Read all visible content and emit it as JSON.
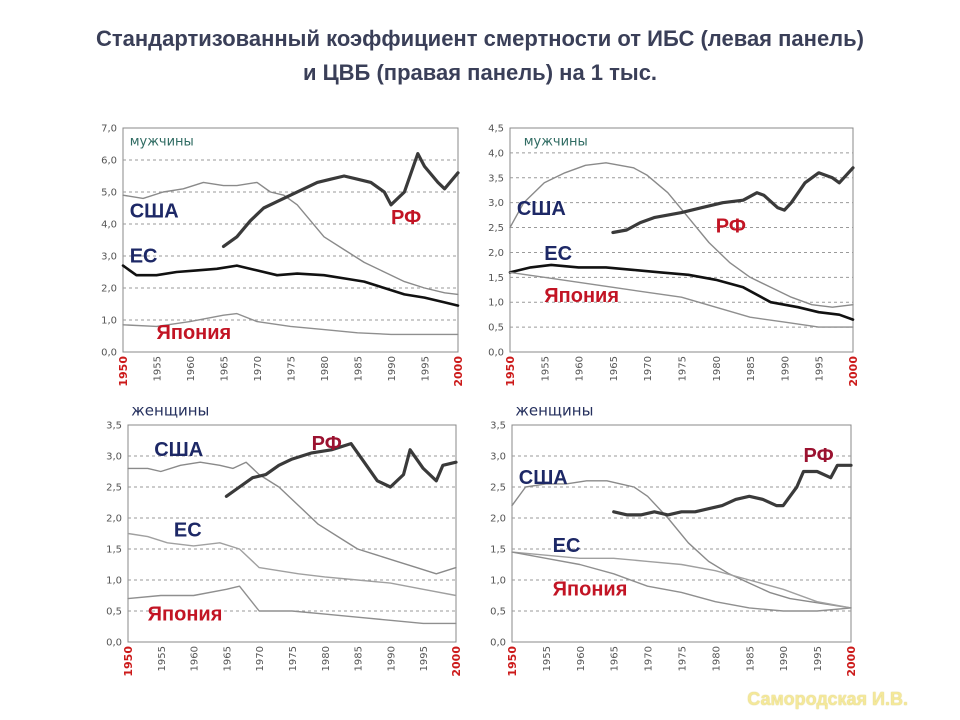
{
  "title_line1": "Стандартизованный коэффициент смертности от ИБС (левая панель)",
  "title_line2": "и ЦВБ (правая панель) на 1 тыс.",
  "footer": "Самородская И.В.",
  "colors": {
    "usa": "#8a8a8a",
    "eu": "#a0a0a0",
    "japan": "#8f8f8f",
    "rf": "#3a3a3a",
    "eu_men": "#111111"
  },
  "chart_data": [
    {
      "type": "line",
      "group": "мужчины",
      "ylim": [
        0,
        7
      ],
      "yticks": [
        "0,0",
        "1,0",
        "2,0",
        "3,0",
        "4,0",
        "5,0",
        "6,0",
        "7,0"
      ],
      "ytick_values": [
        0,
        1,
        2,
        3,
        4,
        5,
        6,
        7
      ],
      "xlim": [
        1950,
        2000
      ],
      "xticks": [
        "1950",
        "1955",
        "1960",
        "1965",
        "1970",
        "1975",
        "1980",
        "1985",
        "1990",
        "1995",
        "2000"
      ],
      "series": [
        {
          "name": "США",
          "role": "usa",
          "x": [
            1950,
            1953,
            1956,
            1959,
            1962,
            1965,
            1967,
            1970,
            1972,
            1974,
            1976,
            1978,
            1980,
            1983,
            1986,
            1989,
            1992,
            1995,
            1998,
            2000
          ],
          "y": [
            4.9,
            4.8,
            5.0,
            5.1,
            5.3,
            5.2,
            5.2,
            5.3,
            5.0,
            4.9,
            4.6,
            4.1,
            3.6,
            3.2,
            2.8,
            2.5,
            2.2,
            2.0,
            1.85,
            1.8
          ]
        },
        {
          "name": "ЕС",
          "role": "eu_men",
          "x": [
            1950,
            1952,
            1955,
            1958,
            1961,
            1964,
            1967,
            1970,
            1973,
            1976,
            1980,
            1983,
            1986,
            1989,
            1992,
            1995,
            1998,
            2000
          ],
          "y": [
            2.7,
            2.4,
            2.4,
            2.5,
            2.55,
            2.6,
            2.7,
            2.55,
            2.4,
            2.45,
            2.4,
            2.3,
            2.2,
            2.0,
            1.8,
            1.7,
            1.55,
            1.45
          ]
        },
        {
          "name": "Япония",
          "role": "japan",
          "x": [
            1950,
            1955,
            1960,
            1965,
            1967,
            1970,
            1975,
            1980,
            1985,
            1990,
            1995,
            2000
          ],
          "y": [
            0.85,
            0.8,
            0.95,
            1.15,
            1.2,
            0.95,
            0.8,
            0.7,
            0.6,
            0.55,
            0.55,
            0.55
          ]
        },
        {
          "name": "РФ",
          "role": "rf",
          "x": [
            1965,
            1967,
            1969,
            1971,
            1973,
            1975,
            1977,
            1979,
            1981,
            1983,
            1985,
            1987,
            1989,
            1990,
            1992,
            1994,
            1995,
            1997,
            1998,
            2000
          ],
          "y": [
            3.3,
            3.6,
            4.1,
            4.5,
            4.7,
            4.9,
            5.1,
            5.3,
            5.4,
            5.5,
            5.4,
            5.3,
            5.0,
            4.6,
            5.0,
            6.2,
            5.8,
            5.3,
            5.1,
            5.6
          ]
        }
      ],
      "labels": [
        {
          "text": "мужчины",
          "style": "sex",
          "x": 1951,
          "y": 6.45
        },
        {
          "text": "США",
          "style": "blue",
          "x": 1951,
          "y": 4.2
        },
        {
          "text": "ЕС",
          "style": "blue",
          "x": 1951,
          "y": 2.8
        },
        {
          "text": "Япония",
          "style": "red",
          "x": 1955,
          "y": 0.4
        },
        {
          "text": "РФ",
          "style": "red",
          "x": 1990,
          "y": 4.0
        }
      ]
    },
    {
      "type": "line",
      "group": "мужчины",
      "ylim": [
        0,
        4.5
      ],
      "yticks": [
        "0,0",
        "0,5",
        "1,0",
        "1,5",
        "2,0",
        "2,5",
        "3,0",
        "3,5",
        "4,0",
        "4,5"
      ],
      "ytick_values": [
        0,
        0.5,
        1,
        1.5,
        2,
        2.5,
        3,
        3.5,
        4,
        4.5
      ],
      "xlim": [
        1950,
        2000
      ],
      "xticks": [
        "1950",
        "1955",
        "1960",
        "1965",
        "1970",
        "1975",
        "1980",
        "1985",
        "1990",
        "1995",
        "2000"
      ],
      "series": [
        {
          "name": "США",
          "role": "usa",
          "x": [
            1950,
            1952,
            1955,
            1958,
            1961,
            1964,
            1966,
            1968,
            1970,
            1973,
            1976,
            1979,
            1982,
            1985,
            1988,
            1991,
            1994,
            1997,
            2000
          ],
          "y": [
            2.5,
            3.0,
            3.4,
            3.6,
            3.75,
            3.8,
            3.75,
            3.7,
            3.55,
            3.2,
            2.7,
            2.2,
            1.8,
            1.5,
            1.3,
            1.1,
            0.95,
            0.9,
            0.95
          ]
        },
        {
          "name": "ЕС",
          "role": "eu_men",
          "x": [
            1950,
            1953,
            1956,
            1960,
            1964,
            1968,
            1972,
            1976,
            1980,
            1984,
            1988,
            1992,
            1995,
            1998,
            2000
          ],
          "y": [
            1.6,
            1.7,
            1.75,
            1.7,
            1.7,
            1.65,
            1.6,
            1.55,
            1.45,
            1.3,
            1.0,
            0.9,
            0.8,
            0.75,
            0.65
          ]
        },
        {
          "name": "Япония",
          "role": "japan",
          "x": [
            1950,
            1955,
            1960,
            1965,
            1970,
            1975,
            1980,
            1985,
            1990,
            1995,
            2000
          ],
          "y": [
            1.6,
            1.5,
            1.4,
            1.3,
            1.2,
            1.1,
            0.9,
            0.7,
            0.6,
            0.5,
            0.5
          ]
        },
        {
          "name": "РФ",
          "role": "rf",
          "x": [
            1965,
            1967,
            1969,
            1971,
            1973,
            1975,
            1978,
            1981,
            1984,
            1986,
            1987,
            1989,
            1990,
            1991,
            1993,
            1995,
            1997,
            1998,
            2000
          ],
          "y": [
            2.4,
            2.45,
            2.6,
            2.7,
            2.75,
            2.8,
            2.9,
            3.0,
            3.05,
            3.2,
            3.15,
            2.9,
            2.85,
            3.0,
            3.4,
            3.6,
            3.5,
            3.4,
            3.7
          ]
        }
      ],
      "labels": [
        {
          "text": "мужчины",
          "style": "sex",
          "x": 1952,
          "y": 4.15
        },
        {
          "text": "США",
          "style": "blue",
          "x": 1951,
          "y": 2.75
        },
        {
          "text": "ЕС",
          "style": "blue",
          "x": 1955,
          "y": 1.85
        },
        {
          "text": "Япония",
          "style": "red",
          "x": 1955,
          "y": 1.0
        },
        {
          "text": "РФ",
          "style": "red",
          "x": 1980,
          "y": 2.4
        }
      ]
    },
    {
      "type": "line",
      "group": "женщины",
      "ylim": [
        0,
        3.5
      ],
      "yticks": [
        "0,0",
        "0,5",
        "1,0",
        "1,5",
        "2,0",
        "2,5",
        "3,0",
        "3,5"
      ],
      "ytick_values": [
        0,
        0.5,
        1,
        1.5,
        2,
        2.5,
        3,
        3.5
      ],
      "xlim": [
        1950,
        2000
      ],
      "xticks": [
        "1950",
        "1955",
        "1960",
        "1965",
        "1970",
        "1975",
        "1980",
        "1985",
        "1990",
        "1995",
        "2000"
      ],
      "series": [
        {
          "name": "США",
          "role": "usa",
          "x": [
            1950,
            1953,
            1955,
            1958,
            1961,
            1964,
            1966,
            1968,
            1970,
            1973,
            1976,
            1979,
            1982,
            1985,
            1988,
            1991,
            1994,
            1997,
            2000
          ],
          "y": [
            2.8,
            2.8,
            2.75,
            2.85,
            2.9,
            2.85,
            2.8,
            2.9,
            2.7,
            2.5,
            2.2,
            1.9,
            1.7,
            1.5,
            1.4,
            1.3,
            1.2,
            1.1,
            1.2
          ]
        },
        {
          "name": "ЕС",
          "role": "eu",
          "x": [
            1950,
            1953,
            1956,
            1960,
            1964,
            1967,
            1970,
            1973,
            1976,
            1980,
            1985,
            1990,
            1995,
            2000
          ],
          "y": [
            1.75,
            1.7,
            1.6,
            1.55,
            1.6,
            1.5,
            1.2,
            1.15,
            1.1,
            1.05,
            1.0,
            0.95,
            0.85,
            0.75
          ]
        },
        {
          "name": "Япония",
          "role": "japan",
          "x": [
            1950,
            1955,
            1960,
            1965,
            1967,
            1970,
            1975,
            1980,
            1985,
            1990,
            1995,
            2000
          ],
          "y": [
            0.7,
            0.75,
            0.75,
            0.85,
            0.9,
            0.5,
            0.5,
            0.45,
            0.4,
            0.35,
            0.3,
            0.3
          ]
        },
        {
          "name": "РФ",
          "role": "rf",
          "x": [
            1965,
            1967,
            1969,
            1971,
            1973,
            1975,
            1978,
            1981,
            1984,
            1986,
            1988,
            1990,
            1992,
            1993,
            1995,
            1997,
            1998,
            2000
          ],
          "y": [
            2.35,
            2.5,
            2.65,
            2.7,
            2.85,
            2.95,
            3.05,
            3.1,
            3.2,
            2.9,
            2.6,
            2.5,
            2.7,
            3.1,
            2.8,
            2.6,
            2.85,
            2.9
          ]
        }
      ],
      "labels": [
        {
          "text": "женщины",
          "style": "sexdark",
          "x": 1950.5,
          "y": 3.65
        },
        {
          "text": "США",
          "style": "blue",
          "x": 1954,
          "y": 3.0
        },
        {
          "text": "РФ",
          "style": "red",
          "x": 1978,
          "y": 3.1
        },
        {
          "text": "ЕС",
          "style": "blue",
          "x": 1957,
          "y": 1.7
        },
        {
          "text": "Япония",
          "style": "red",
          "x": 1953,
          "y": 0.35
        }
      ]
    },
    {
      "type": "line",
      "group": "женщины",
      "ylim": [
        0,
        3.5
      ],
      "yticks": [
        "0,0",
        "0,5",
        "1,0",
        "1,5",
        "2,0",
        "2,5",
        "3,0",
        "3,5"
      ],
      "ytick_values": [
        0,
        0.5,
        1,
        1.5,
        2,
        2.5,
        3,
        3.5
      ],
      "xlim": [
        1950,
        2000
      ],
      "xticks": [
        "1950",
        "1955",
        "1960",
        "1965",
        "1970",
        "1975",
        "1980",
        "1985",
        "1990",
        "1995",
        "2000"
      ],
      "series": [
        {
          "name": "США",
          "role": "usa",
          "x": [
            1950,
            1952,
            1955,
            1958,
            1961,
            1964,
            1966,
            1968,
            1970,
            1973,
            1976,
            1979,
            1982,
            1985,
            1988,
            1991,
            1994,
            1997,
            2000
          ],
          "y": [
            2.2,
            2.5,
            2.55,
            2.55,
            2.6,
            2.6,
            2.55,
            2.5,
            2.35,
            2.0,
            1.6,
            1.3,
            1.1,
            0.95,
            0.8,
            0.7,
            0.65,
            0.6,
            0.55
          ]
        },
        {
          "name": "ЕС",
          "role": "eu",
          "x": [
            1950,
            1955,
            1960,
            1965,
            1970,
            1975,
            1980,
            1985,
            1990,
            1995,
            2000
          ],
          "y": [
            1.45,
            1.4,
            1.35,
            1.35,
            1.3,
            1.25,
            1.15,
            1.0,
            0.85,
            0.65,
            0.55
          ]
        },
        {
          "name": "Япония",
          "role": "japan",
          "x": [
            1950,
            1955,
            1960,
            1965,
            1970,
            1975,
            1980,
            1985,
            1990,
            1995,
            2000
          ],
          "y": [
            1.45,
            1.35,
            1.25,
            1.1,
            0.9,
            0.8,
            0.65,
            0.55,
            0.5,
            0.5,
            0.55
          ]
        },
        {
          "name": "РФ",
          "role": "rf",
          "x": [
            1965,
            1967,
            1969,
            1971,
            1973,
            1975,
            1977,
            1979,
            1981,
            1983,
            1985,
            1987,
            1989,
            1990,
            1992,
            1993,
            1995,
            1997,
            1998,
            2000
          ],
          "y": [
            2.1,
            2.05,
            2.05,
            2.1,
            2.05,
            2.1,
            2.1,
            2.15,
            2.2,
            2.3,
            2.35,
            2.3,
            2.2,
            2.2,
            2.5,
            2.75,
            2.75,
            2.65,
            2.85,
            2.85
          ]
        }
      ],
      "labels": [
        {
          "text": "женщины",
          "style": "sexdark",
          "x": 1950.5,
          "y": 3.65
        },
        {
          "text": "США",
          "style": "blue",
          "x": 1951,
          "y": 2.55
        },
        {
          "text": "РФ",
          "style": "red",
          "x": 1993,
          "y": 2.9
        },
        {
          "text": "ЕС",
          "style": "blue",
          "x": 1956,
          "y": 1.45
        },
        {
          "text": "Япония",
          "style": "red",
          "x": 1956,
          "y": 0.75
        }
      ]
    }
  ]
}
